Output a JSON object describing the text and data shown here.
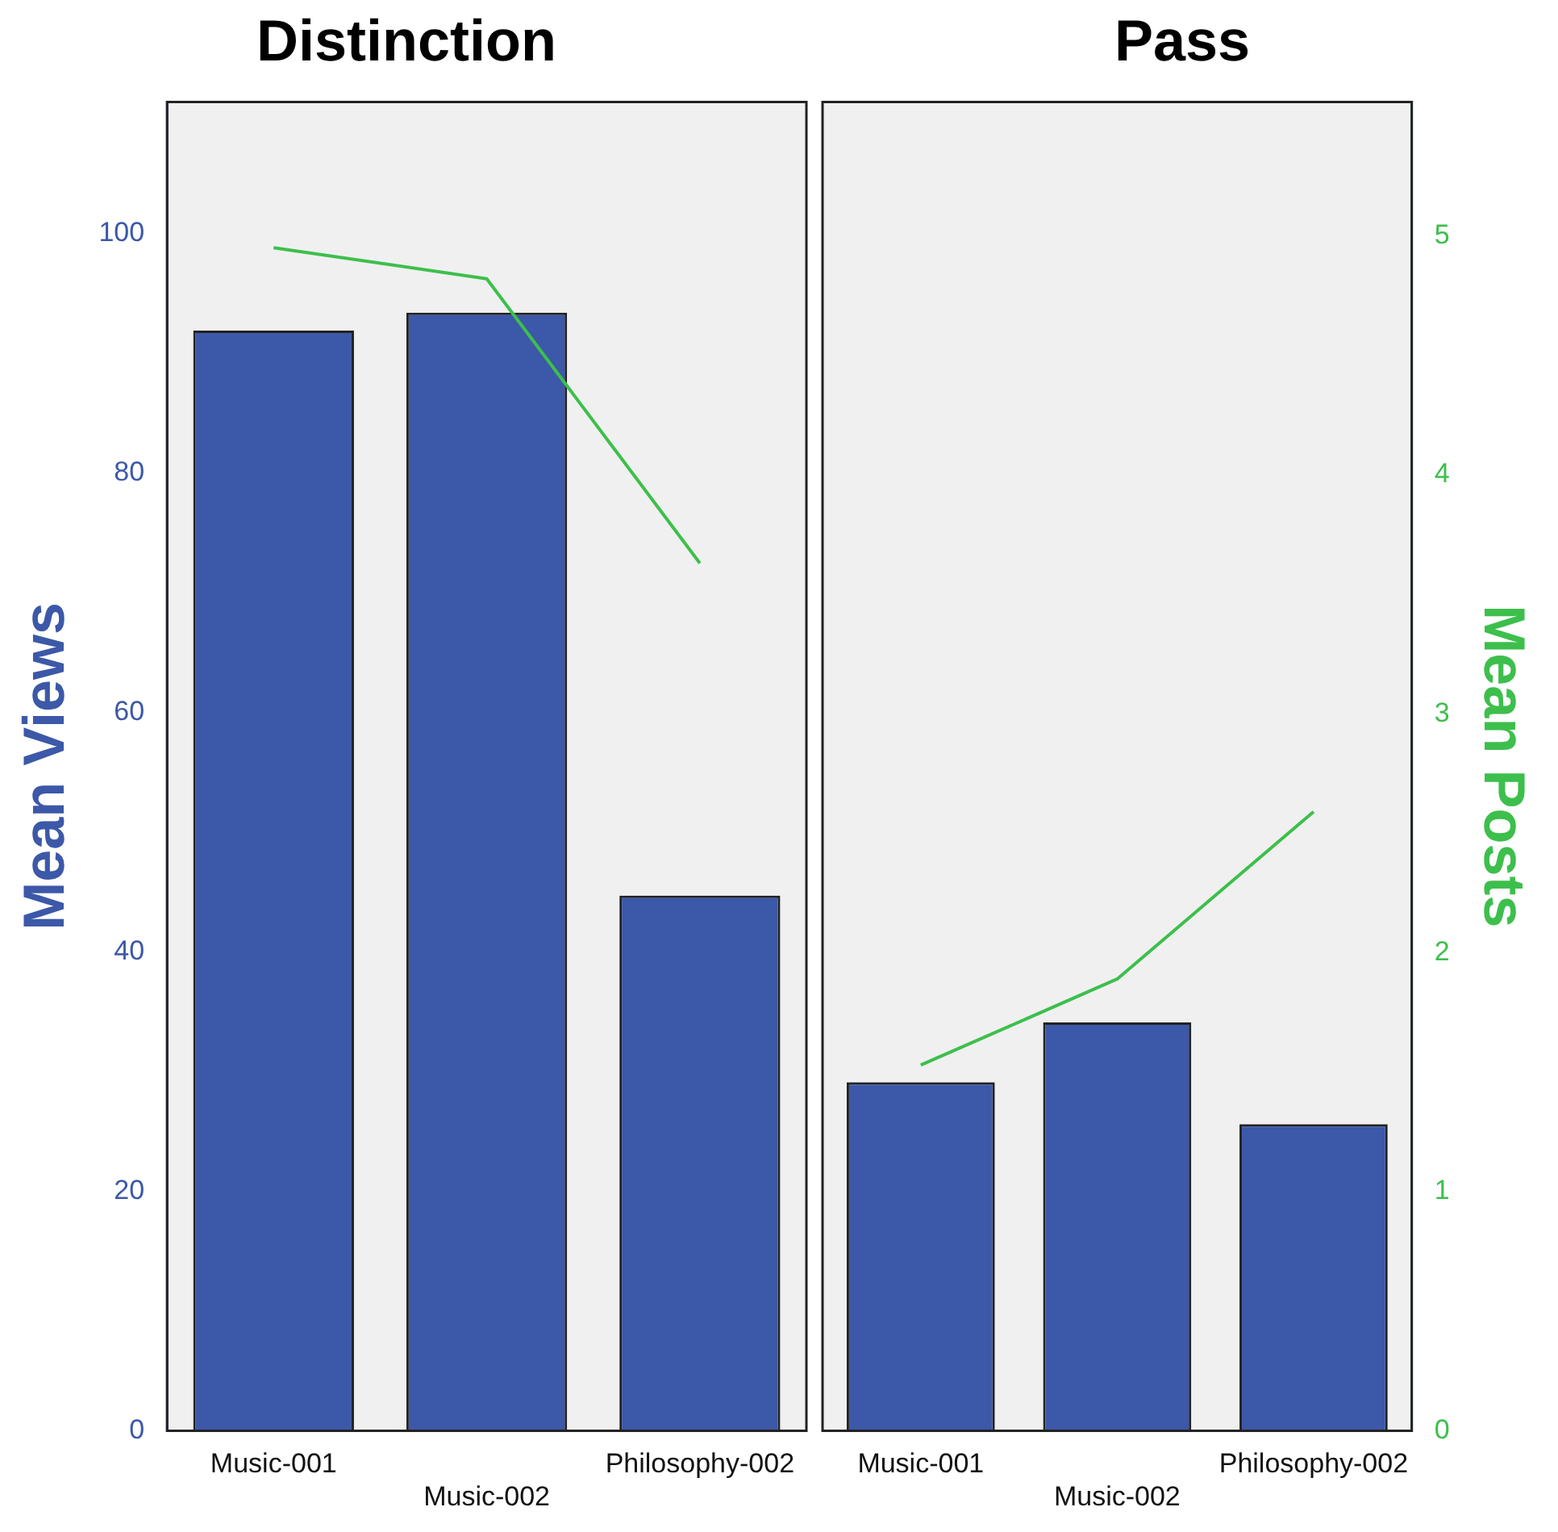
{
  "chart_data": [
    {
      "type": "bar",
      "title": "Distinction",
      "ylabel": "Mean Views",
      "categories": [
        "Music-001",
        "Music-002",
        "Philosophy-002"
      ],
      "ylim": [
        0,
        111
      ],
      "yticks": [
        0,
        20,
        40,
        60,
        80,
        100
      ],
      "y2lim": [
        0,
        5.56
      ],
      "grid": false,
      "series": [
        {
          "color": "#3c58a8",
          "values": [
            91.9,
            93.4,
            44.7
          ]
        },
        {
          "type": "line",
          "axis": "y2",
          "color": "#3dbf4c",
          "values": [
            4.95,
            4.82,
            3.63
          ]
        }
      ]
    },
    {
      "type": "bar",
      "title": "Pass",
      "y2label": "Mean Posts",
      "categories": [
        "Music-001",
        "Music-002",
        "Philosophy-002"
      ],
      "ylim": [
        0,
        111
      ],
      "y2lim": [
        0,
        5.56
      ],
      "y2ticks": [
        0,
        1,
        2,
        3,
        4,
        5
      ],
      "grid": false,
      "series": [
        {
          "color": "#3c58a8",
          "values": [
            29.1,
            34.1,
            25.6
          ]
        },
        {
          "type": "line",
          "axis": "y2",
          "color": "#3dbf4c",
          "values": [
            1.53,
            1.89,
            2.59
          ]
        }
      ]
    }
  ]
}
